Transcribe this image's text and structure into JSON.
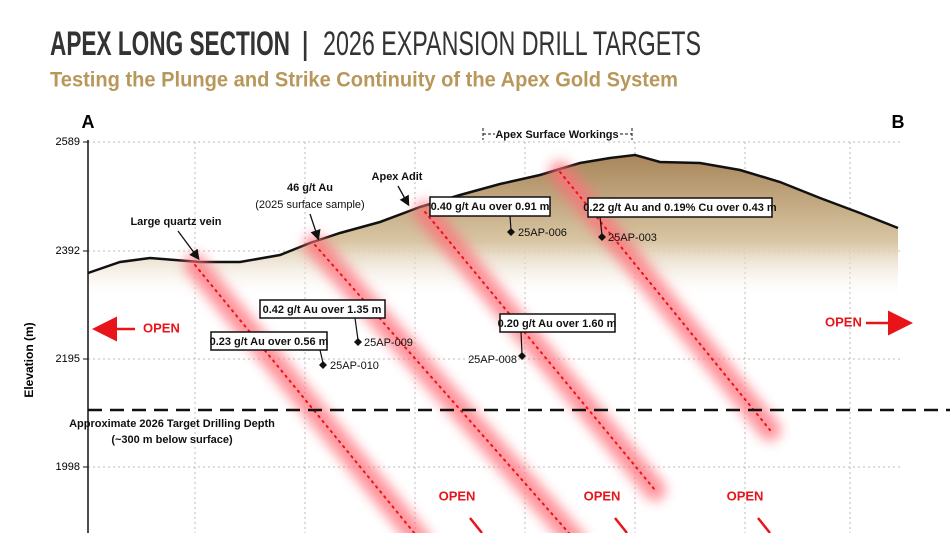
{
  "header": {
    "title_bold": "APEX LONG SECTION",
    "separator": "|",
    "title_light": "2026 EXPANSION DRILL TARGETS",
    "subtitle": "Testing the Plunge and Strike Continuity of the Apex Gold System"
  },
  "section": {
    "start": "A",
    "end": "B"
  },
  "axis": {
    "label": "Elevation (m)",
    "ticks": [
      2589,
      2392,
      2195,
      1998
    ]
  },
  "annotations": [
    "Large quartz vein",
    "46 g/t Au",
    "(2025 surface sample)",
    "Apex Adit",
    "Apex Surface Workings"
  ],
  "assays": [
    "0.40 g/t Au over 0.91 m",
    "0.22 g/t Au and 0.19% Cu over 0.43 m",
    "0.42 g/t Au over 1.35 m",
    "0.20 g/t Au over 1.60 m",
    "0.23 g/t Au over 0.56 m"
  ],
  "holes": [
    "25AP-006",
    "25AP-003",
    "25AP-009",
    "25AP-008",
    "25AP-010"
  ],
  "depth_line": [
    "Approximate 2026 Target Drilling Depth",
    "(~300 m below surface)"
  ],
  "open_labels": [
    "OPEN",
    "OPEN",
    "OPEN",
    "OPEN",
    "OPEN"
  ]
}
